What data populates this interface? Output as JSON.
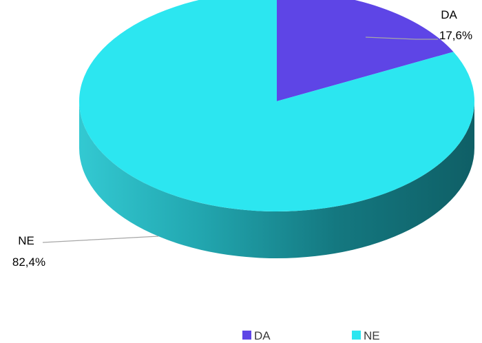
{
  "chart_data": {
    "type": "pie",
    "title": "",
    "slices": [
      {
        "label": "DA",
        "value": 17.6,
        "value_label": "17,6%",
        "color": "#5e45e6"
      },
      {
        "label": "NE",
        "value": 82.4,
        "value_label": "82,4%",
        "color": "#2ce6f0"
      }
    ],
    "legend_position": "bottom",
    "three_d": true
  }
}
